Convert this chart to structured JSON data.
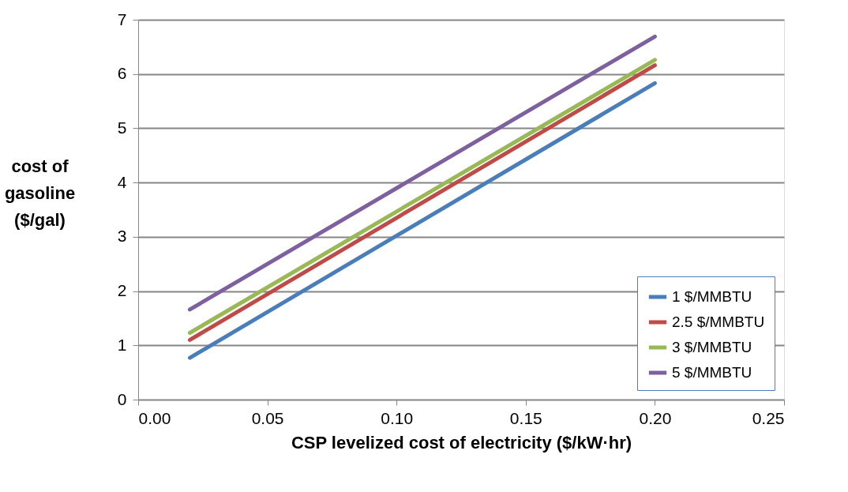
{
  "chart_data": {
    "type": "line",
    "xlabel": "CSP levelized cost of electricity ($/kW·hr)",
    "ylabel": "cost of\ngasoline\n($/gal)",
    "x": [
      0.02,
      0.2
    ],
    "series": [
      {
        "name": "1 $/MMBTU",
        "color": "#4a7ebb",
        "values": [
          0.77,
          5.83
        ]
      },
      {
        "name": "2.5 $/MMBTU",
        "color": "#be4b48",
        "values": [
          1.1,
          6.16
        ]
      },
      {
        "name": "3 $/MMBTU",
        "color": "#98b954",
        "values": [
          1.23,
          6.26
        ]
      },
      {
        "name": "5 $/MMBTU",
        "color": "#7d60a0",
        "values": [
          1.66,
          6.69
        ]
      }
    ],
    "xlim": [
      0,
      0.25
    ],
    "xticks": [
      {
        "value": 0,
        "label": "0.00"
      },
      {
        "value": 0.05,
        "label": "0.05"
      },
      {
        "value": 0.1,
        "label": "0.10"
      },
      {
        "value": 0.15,
        "label": "0.15"
      },
      {
        "value": 0.2,
        "label": "0.20"
      },
      {
        "value": 0.25,
        "label": "0.25"
      }
    ],
    "ylim": [
      0,
      7
    ],
    "yticks": [
      0,
      1,
      2,
      3,
      4,
      5,
      6,
      7
    ],
    "grid": "y",
    "legend": "bottom right",
    "marker": "none",
    "line_style": "solid"
  }
}
